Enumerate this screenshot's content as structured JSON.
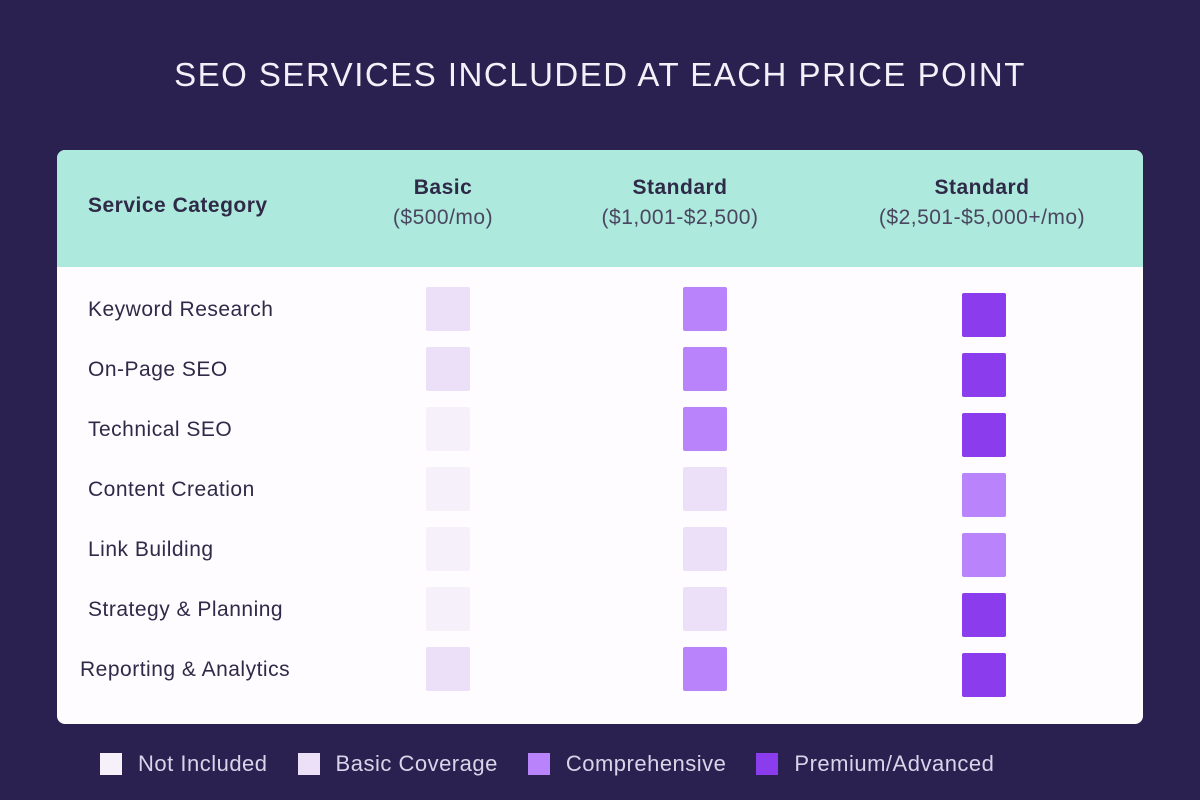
{
  "chart_data": {
    "type": "heatmap",
    "title": "SEO SERVICES INCLUDED AT EACH PRICE POINT",
    "row_header": "Service Category",
    "columns": [
      {
        "name": "Basic",
        "price": "($500/mo)"
      },
      {
        "name": "Standard",
        "price": "($1,001-$2,500)"
      },
      {
        "name": "Standard",
        "price": "($2,501-$5,000+/mo)"
      }
    ],
    "rows": [
      "Keyword Research",
      "On-Page SEO",
      "Technical SEO",
      "Content Creation",
      "Link Building",
      "Strategy & Planning",
      "Reporting & Analytics"
    ],
    "levels": [
      "Not Included",
      "Basic Coverage",
      "Comprehensive",
      "Premium/Advanced"
    ],
    "level_colors": [
      "#f6f0fb",
      "#ebe0f8",
      "#b983fc",
      "#8b3ded"
    ],
    "values": [
      [
        "Basic Coverage",
        "Comprehensive",
        "Premium/Advanced"
      ],
      [
        "Basic Coverage",
        "Comprehensive",
        "Premium/Advanced"
      ],
      [
        "Not Included",
        "Comprehensive",
        "Premium/Advanced"
      ],
      [
        "Not Included",
        "Basic Coverage",
        "Comprehensive"
      ],
      [
        "Not Included",
        "Basic Coverage",
        "Comprehensive"
      ],
      [
        "Not Included",
        "Basic Coverage",
        "Premium/Advanced"
      ],
      [
        "Basic Coverage",
        "Comprehensive",
        "Premium/Advanced"
      ]
    ],
    "legend_position": "bottom"
  },
  "colors": {
    "background": "#2b2150",
    "header": "#aee9dd"
  }
}
